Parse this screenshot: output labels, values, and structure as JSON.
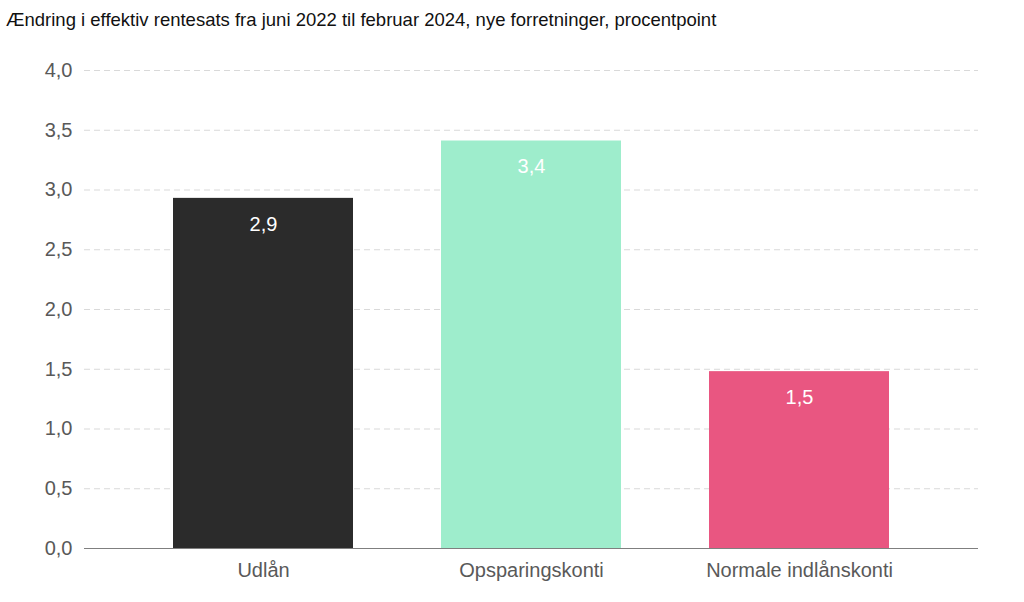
{
  "chart_data": {
    "type": "bar",
    "title": "Ændring i effektiv rentesats fra juni 2022 til februar 2024, nye forretninger, procentpoint",
    "categories": [
      "Udlån",
      "Opsparingskonti",
      "Normale indlånskonti"
    ],
    "values": [
      2.93,
      3.41,
      1.48
    ],
    "value_labels": [
      "2,9",
      "3,4",
      "1,5"
    ],
    "colors": [
      "#2b2b2b",
      "#9eedcc",
      "#e95681"
    ],
    "ylim": [
      0,
      4
    ],
    "yticks": [
      {
        "value": 0,
        "label": "0,0"
      },
      {
        "value": 0.5,
        "label": "0,5"
      },
      {
        "value": 1,
        "label": "1,0"
      },
      {
        "value": 1.5,
        "label": "1,5"
      },
      {
        "value": 2,
        "label": "2,0"
      },
      {
        "value": 2.5,
        "label": "2,5"
      },
      {
        "value": 3,
        "label": "3,0"
      },
      {
        "value": 3.5,
        "label": "3,5"
      },
      {
        "value": 4,
        "label": "4,0"
      }
    ],
    "grid": true,
    "data_labels": true
  }
}
